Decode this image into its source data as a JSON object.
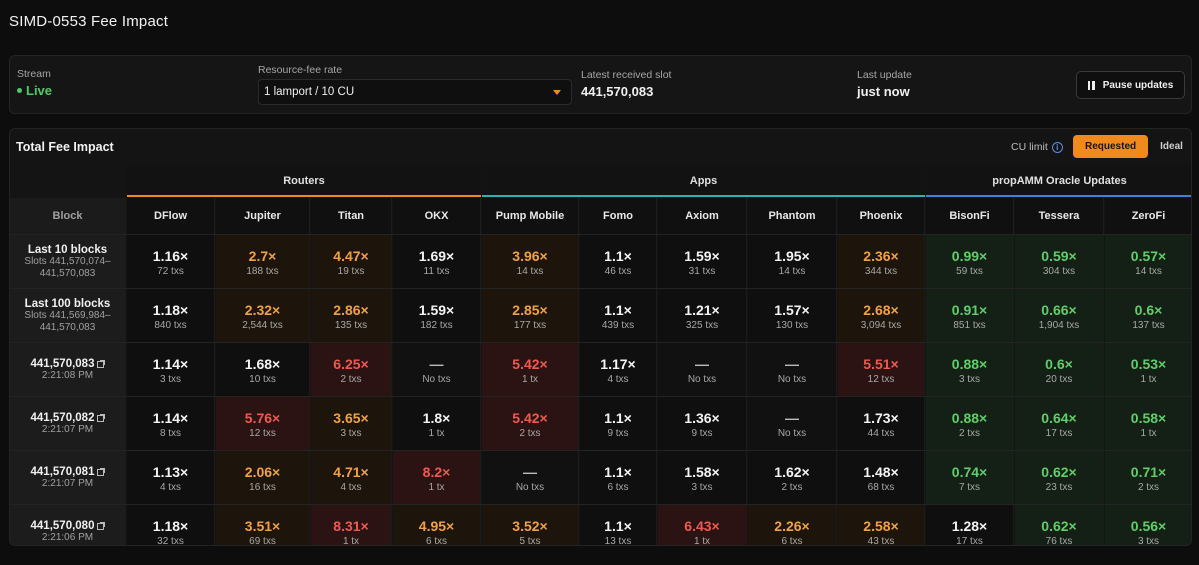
{
  "page": {
    "title": "SIMD-0553 Fee Impact"
  },
  "controls": {
    "stream_label": "Stream",
    "stream_value": "Live",
    "fee_rate_label": "Resource-fee rate",
    "fee_rate_value": "1 lamport / 10 CU",
    "slot_label": "Latest received slot",
    "slot_value": "441,570,083",
    "update_label": "Last update",
    "update_value": "just now",
    "pause_label": "Pause updates"
  },
  "panel": {
    "title": "Total Fee Impact",
    "cu_limit_label": "CU limit",
    "toggle_requested": "Requested",
    "toggle_ideal": "Ideal",
    "selected_toggle": "Requested"
  },
  "colors": {
    "accent": "#f08a1c",
    "live": "#4ccb68",
    "routers": "#f08a1c",
    "apps": "#2ab3b0",
    "propamm": "#3f7fe0"
  },
  "groups": [
    {
      "label": "Routers"
    },
    {
      "label": "Apps"
    },
    {
      "label": "propAMM Oracle Updates"
    }
  ],
  "columns": [
    "Block",
    "DFlow",
    "Jupiter",
    "Titan",
    "OKX",
    "Pump Mobile",
    "Fomo",
    "Axiom",
    "Phantom",
    "Phoenix",
    "BisonFi",
    "Tessera",
    "ZeroFi"
  ],
  "rows": [
    {
      "label": "Last 10 blocks",
      "sub1": "Slots 441,570,074–",
      "sub2": "441,570,083",
      "cells": [
        {
          "v": "1.16×",
          "t": "72 txs",
          "c": "white",
          "bg": "n"
        },
        {
          "v": "2.7×",
          "t": "188 txs",
          "c": "orange",
          "bg": "o"
        },
        {
          "v": "4.47×",
          "t": "19 txs",
          "c": "orange",
          "bg": "o"
        },
        {
          "v": "1.69×",
          "t": "11 txs",
          "c": "white",
          "bg": "n"
        },
        {
          "v": "3.96×",
          "t": "14 txs",
          "c": "orange",
          "bg": "o"
        },
        {
          "v": "1.1×",
          "t": "46 txs",
          "c": "white",
          "bg": "n"
        },
        {
          "v": "1.59×",
          "t": "31 txs",
          "c": "white",
          "bg": "n"
        },
        {
          "v": "1.95×",
          "t": "14 txs",
          "c": "white",
          "bg": "n"
        },
        {
          "v": "2.36×",
          "t": "344 txs",
          "c": "orange",
          "bg": "o"
        },
        {
          "v": "0.99×",
          "t": "59 txs",
          "c": "green",
          "bg": "g"
        },
        {
          "v": "0.59×",
          "t": "304 txs",
          "c": "green",
          "bg": "g"
        },
        {
          "v": "0.57×",
          "t": "14 txs",
          "c": "green",
          "bg": "g"
        }
      ]
    },
    {
      "label": "Last 100 blocks",
      "sub1": "Slots 441,569,984–",
      "sub2": "441,570,083",
      "cells": [
        {
          "v": "1.18×",
          "t": "840 txs",
          "c": "white",
          "bg": "n"
        },
        {
          "v": "2.32×",
          "t": "2,544 txs",
          "c": "orange",
          "bg": "o"
        },
        {
          "v": "2.86×",
          "t": "135 txs",
          "c": "orange",
          "bg": "o"
        },
        {
          "v": "1.59×",
          "t": "182 txs",
          "c": "white",
          "bg": "n"
        },
        {
          "v": "2.85×",
          "t": "177 txs",
          "c": "orange",
          "bg": "o"
        },
        {
          "v": "1.1×",
          "t": "439 txs",
          "c": "white",
          "bg": "n"
        },
        {
          "v": "1.21×",
          "t": "325 txs",
          "c": "white",
          "bg": "n"
        },
        {
          "v": "1.57×",
          "t": "130 txs",
          "c": "white",
          "bg": "n"
        },
        {
          "v": "2.68×",
          "t": "3,094 txs",
          "c": "orange",
          "bg": "o"
        },
        {
          "v": "0.91×",
          "t": "851 txs",
          "c": "green",
          "bg": "g"
        },
        {
          "v": "0.66×",
          "t": "1,904 txs",
          "c": "green",
          "bg": "g"
        },
        {
          "v": "0.6×",
          "t": "137 txs",
          "c": "green",
          "bg": "g"
        }
      ]
    },
    {
      "label": "441,570,083",
      "sub1": "2:21:08 PM",
      "sub2": "",
      "ext": true,
      "cells": [
        {
          "v": "1.14×",
          "t": "3 txs",
          "c": "white",
          "bg": "n"
        },
        {
          "v": "1.68×",
          "t": "10 txs",
          "c": "white",
          "bg": "n"
        },
        {
          "v": "6.25×",
          "t": "2 txs",
          "c": "red",
          "bg": "r"
        },
        {
          "v": "—",
          "t": "No txs",
          "c": "dash",
          "bg": "d"
        },
        {
          "v": "5.42×",
          "t": "1 tx",
          "c": "red",
          "bg": "r"
        },
        {
          "v": "1.17×",
          "t": "4 txs",
          "c": "white",
          "bg": "n"
        },
        {
          "v": "—",
          "t": "No txs",
          "c": "dash",
          "bg": "d"
        },
        {
          "v": "—",
          "t": "No txs",
          "c": "dash",
          "bg": "d"
        },
        {
          "v": "5.51×",
          "t": "12 txs",
          "c": "red",
          "bg": "r"
        },
        {
          "v": "0.88×",
          "t": "3 txs",
          "c": "green",
          "bg": "g"
        },
        {
          "v": "0.6×",
          "t": "20 txs",
          "c": "green",
          "bg": "g"
        },
        {
          "v": "0.53×",
          "t": "1 tx",
          "c": "green",
          "bg": "g"
        }
      ]
    },
    {
      "label": "441,570,082",
      "sub1": "2:21:07 PM",
      "sub2": "",
      "ext": true,
      "cells": [
        {
          "v": "1.14×",
          "t": "8 txs",
          "c": "white",
          "bg": "n"
        },
        {
          "v": "5.76×",
          "t": "12 txs",
          "c": "red",
          "bg": "r"
        },
        {
          "v": "3.65×",
          "t": "3 txs",
          "c": "orange",
          "bg": "o"
        },
        {
          "v": "1.8×",
          "t": "1 tx",
          "c": "white",
          "bg": "n"
        },
        {
          "v": "5.42×",
          "t": "2 txs",
          "c": "red",
          "bg": "r"
        },
        {
          "v": "1.1×",
          "t": "9 txs",
          "c": "white",
          "bg": "n"
        },
        {
          "v": "1.36×",
          "t": "9 txs",
          "c": "white",
          "bg": "n"
        },
        {
          "v": "—",
          "t": "No txs",
          "c": "dash",
          "bg": "d"
        },
        {
          "v": "1.73×",
          "t": "44 txs",
          "c": "white",
          "bg": "n"
        },
        {
          "v": "0.88×",
          "t": "2 txs",
          "c": "green",
          "bg": "g"
        },
        {
          "v": "0.64×",
          "t": "17 txs",
          "c": "green",
          "bg": "g"
        },
        {
          "v": "0.58×",
          "t": "1 tx",
          "c": "green",
          "bg": "g"
        }
      ]
    },
    {
      "label": "441,570,081",
      "sub1": "2:21:07 PM",
      "sub2": "",
      "ext": true,
      "cells": [
        {
          "v": "1.13×",
          "t": "4 txs",
          "c": "white",
          "bg": "n"
        },
        {
          "v": "2.06×",
          "t": "16 txs",
          "c": "orange",
          "bg": "o"
        },
        {
          "v": "4.71×",
          "t": "4 txs",
          "c": "orange",
          "bg": "o"
        },
        {
          "v": "8.2×",
          "t": "1 tx",
          "c": "red",
          "bg": "r"
        },
        {
          "v": "—",
          "t": "No txs",
          "c": "dash",
          "bg": "d"
        },
        {
          "v": "1.1×",
          "t": "6 txs",
          "c": "white",
          "bg": "n"
        },
        {
          "v": "1.58×",
          "t": "3 txs",
          "c": "white",
          "bg": "n"
        },
        {
          "v": "1.62×",
          "t": "2 txs",
          "c": "white",
          "bg": "n"
        },
        {
          "v": "1.48×",
          "t": "68 txs",
          "c": "white",
          "bg": "n"
        },
        {
          "v": "0.74×",
          "t": "7 txs",
          "c": "green",
          "bg": "g"
        },
        {
          "v": "0.62×",
          "t": "23 txs",
          "c": "green",
          "bg": "g"
        },
        {
          "v": "0.71×",
          "t": "2 txs",
          "c": "green",
          "bg": "g"
        }
      ]
    },
    {
      "label": "441,570,080",
      "sub1": "2:21:06 PM",
      "sub2": "",
      "ext": true,
      "cells": [
        {
          "v": "1.18×",
          "t": "32 txs",
          "c": "white",
          "bg": "n"
        },
        {
          "v": "3.51×",
          "t": "69 txs",
          "c": "orange",
          "bg": "o"
        },
        {
          "v": "8.31×",
          "t": "1 tx",
          "c": "red",
          "bg": "r"
        },
        {
          "v": "4.95×",
          "t": "6 txs",
          "c": "orange",
          "bg": "o"
        },
        {
          "v": "3.52×",
          "t": "5 txs",
          "c": "orange",
          "bg": "o"
        },
        {
          "v": "1.1×",
          "t": "13 txs",
          "c": "white",
          "bg": "n"
        },
        {
          "v": "6.43×",
          "t": "1 tx",
          "c": "red",
          "bg": "r"
        },
        {
          "v": "2.26×",
          "t": "6 txs",
          "c": "orange",
          "bg": "o"
        },
        {
          "v": "2.58×",
          "t": "43 txs",
          "c": "orange",
          "bg": "o"
        },
        {
          "v": "1.28×",
          "t": "17 txs",
          "c": "white",
          "bg": "n"
        },
        {
          "v": "0.62×",
          "t": "76 txs",
          "c": "green",
          "bg": "g"
        },
        {
          "v": "0.56×",
          "t": "3 txs",
          "c": "green",
          "bg": "g"
        }
      ]
    }
  ]
}
